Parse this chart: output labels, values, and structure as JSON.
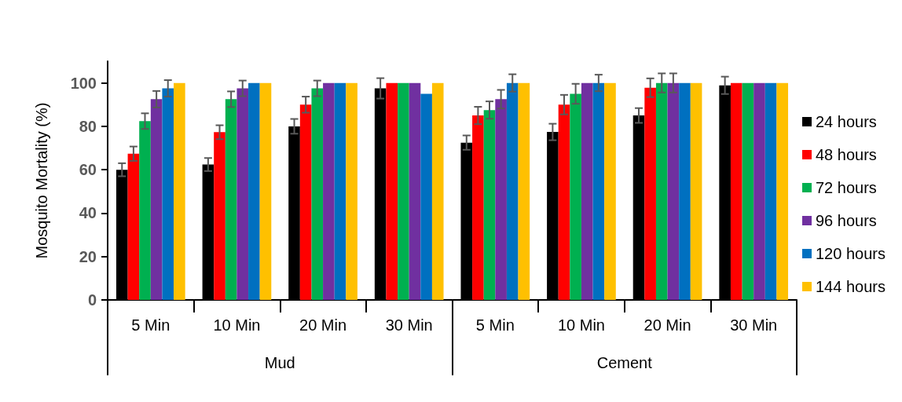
{
  "chart_data": {
    "type": "bar",
    "ylabel": "Mosquito Mortality (%)",
    "categories": [
      "5 Min",
      "10 Min",
      "20 Min",
      "30 Min",
      "5 Min",
      "10 Min",
      "20 Min",
      "30 Min"
    ],
    "annotations": [
      "Mud",
      "Cement"
    ],
    "series": [
      {
        "name": "24 hours",
        "color": "#000000",
        "values": [
          60,
          62.4,
          80,
          97.5,
          72.5,
          77.4,
          85,
          98.9
        ],
        "errors": [
          3,
          3,
          3.4,
          4.7,
          3.3,
          3.8,
          3.4,
          4
        ]
      },
      {
        "name": "48 hours",
        "color": "#ff0000",
        "values": [
          67.4,
          77.3,
          90,
          100,
          85,
          90,
          97.8,
          100
        ],
        "errors": [
          3.3,
          3.2,
          3.7,
          null,
          4,
          4.5,
          4.3,
          null
        ]
      },
      {
        "name": "72 hours",
        "color": "#00b050",
        "values": [
          82.4,
          92.5,
          97.5,
          100,
          87.5,
          95,
          100,
          100
        ],
        "errors": [
          3.6,
          3.6,
          3.6,
          null,
          4,
          4.6,
          4.4,
          null
        ]
      },
      {
        "name": "96 hours",
        "color": "#7030a0",
        "values": [
          92.5,
          97.5,
          100,
          100,
          92.5,
          100,
          100,
          100
        ],
        "errors": [
          3.8,
          3.6,
          null,
          null,
          4.3,
          null,
          4.4,
          null
        ]
      },
      {
        "name": "120 hours",
        "color": "#0070c0",
        "values": [
          97.5,
          100,
          100,
          95,
          100,
          100,
          100,
          100
        ],
        "errors": [
          3.8,
          null,
          null,
          null,
          4,
          3.8,
          null,
          null
        ]
      },
      {
        "name": "144 hours",
        "color": "#ffc000",
        "values": [
          100,
          100,
          100,
          100,
          100,
          100,
          100,
          100
        ]
      }
    ],
    "ylim": [
      0,
      110
    ],
    "yticks": [
      0,
      20,
      40,
      60,
      80,
      100
    ],
    "grid": false,
    "legend": "right"
  }
}
